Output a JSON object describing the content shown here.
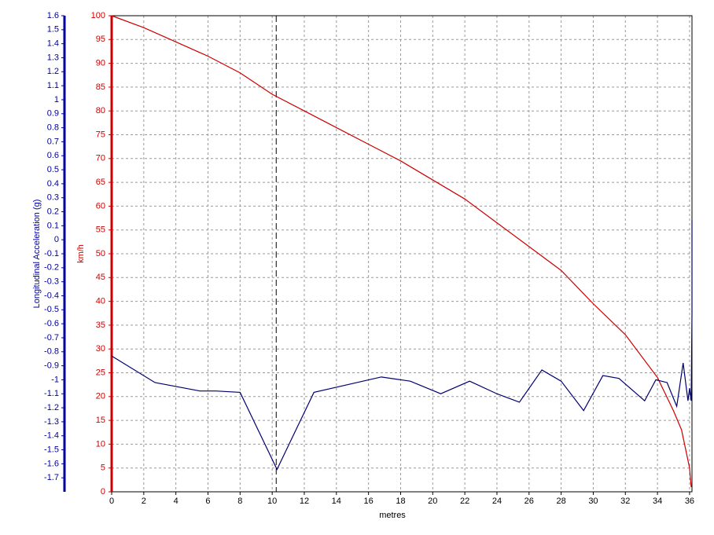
{
  "chart_data": {
    "type": "line",
    "xlabel": "metres",
    "ylabel": "km/h",
    "y2label": "Longitudinal Acceleration (g)",
    "xlim": [
      0,
      36.15
    ],
    "xticks": [
      0,
      2,
      4,
      6,
      8,
      10,
      12,
      14,
      16,
      18,
      20,
      22,
      24,
      26,
      28,
      30,
      32,
      34,
      36
    ],
    "ylim": [
      0,
      100
    ],
    "yticks": [
      0,
      5,
      10,
      15,
      20,
      25,
      30,
      35,
      40,
      45,
      50,
      55,
      60,
      65,
      70,
      75,
      80,
      85,
      90,
      95,
      100
    ],
    "y2lim": [
      -1.8,
      1.6
    ],
    "y2ticks": [
      -1.7,
      -1.6,
      -1.5,
      -1.4,
      -1.3,
      -1.2,
      -1.1,
      -1,
      -0.9,
      -0.8,
      -0.7,
      -0.6,
      -0.5,
      -0.4,
      -0.3,
      -0.2,
      -0.1,
      0,
      0.1,
      0.2,
      0.3,
      0.4,
      0.5,
      0.6,
      0.7,
      0.8,
      0.9,
      1,
      1.1,
      1.2,
      1.3,
      1.4,
      1.5,
      1.6
    ],
    "grid": true,
    "cursor_x": 10.25,
    "axis_colors": {
      "y": "#cc0000",
      "y2": "#00009c"
    },
    "series": [
      {
        "name": "km/h",
        "color": "#cc0000",
        "x": [
          0,
          2,
          4,
          6,
          8,
          10,
          12,
          14,
          16,
          18,
          20,
          22,
          24,
          26,
          28,
          30,
          32,
          34,
          35,
          35.5,
          36,
          36.1
        ],
        "values": [
          100,
          97.5,
          94.5,
          91.5,
          88,
          83.5,
          80,
          76.5,
          73,
          69.5,
          65.5,
          61.5,
          56.5,
          51.5,
          46.5,
          39.5,
          33,
          24,
          17,
          13,
          5,
          1
        ]
      },
      {
        "name": "Longitudinal Acceleration (g)",
        "color": "#00006e",
        "axis": "y2",
        "x": [
          0,
          2.7,
          5.5,
          6.5,
          8,
          10.3,
          12.6,
          14.5,
          16.8,
          18.6,
          20.5,
          22.3,
          24,
          25.4,
          26.8,
          28,
          29.4,
          30.6,
          31.6,
          33.2,
          33.9,
          34.6,
          35.2,
          35.6,
          35.9,
          36,
          36.1,
          36.15,
          36.15
        ],
        "values": [
          -0.83,
          -1.02,
          -1.08,
          -1.08,
          -1.09,
          -1.64,
          -1.09,
          -1.04,
          -0.98,
          -1.01,
          -1.1,
          -1.01,
          -1.1,
          -1.16,
          -0.93,
          -1.01,
          -1.22,
          -0.97,
          -0.99,
          -1.15,
          -1.0,
          -1.02,
          -1.19,
          -0.88,
          -1.15,
          -1.06,
          -1.15,
          -0.53,
          0.14
        ]
      }
    ]
  }
}
